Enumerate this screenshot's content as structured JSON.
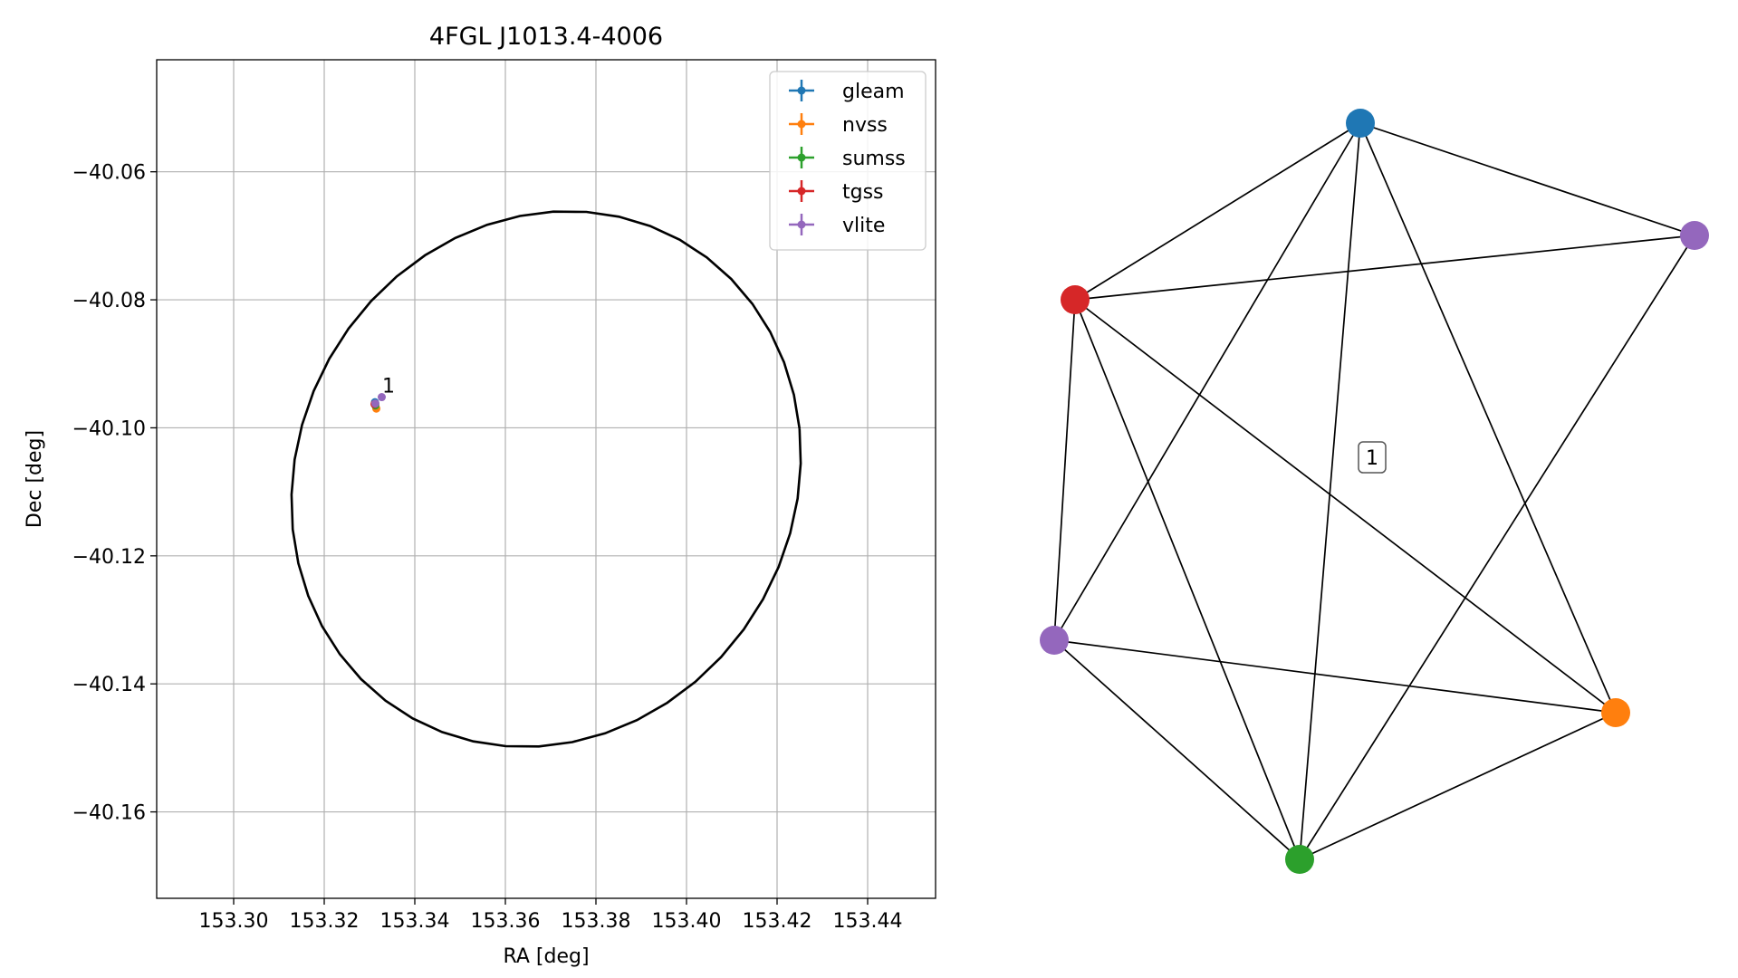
{
  "chart_data": [
    {
      "type": "scatter",
      "title": "4FGL J1013.4-4006",
      "xlabel": "RA [deg]",
      "ylabel": "Dec [deg]",
      "xlim": [
        153.283,
        153.455
      ],
      "ylim": [
        -40.1735,
        -40.0425
      ],
      "xticks": [
        153.3,
        153.32,
        153.34,
        153.36,
        153.38,
        153.4,
        153.42,
        153.44
      ],
      "xtick_labels": [
        "153.30",
        "153.32",
        "153.34",
        "153.36",
        "153.38",
        "153.40",
        "153.42",
        "153.44"
      ],
      "yticks": [
        -40.06,
        -40.08,
        -40.1,
        -40.12,
        -40.14,
        -40.16
      ],
      "ytick_labels": [
        "−40.06",
        "−40.08",
        "−40.10",
        "−40.12",
        "−40.14",
        "−40.16"
      ],
      "grid": true,
      "legend_position": "top-right",
      "series": [
        {
          "name": "gleam",
          "color": "#1f77b4",
          "points": [
            [
              153.3312,
              -40.096
            ]
          ]
        },
        {
          "name": "nvss",
          "color": "#ff7f0e",
          "points": [
            [
              153.3315,
              -40.097
            ]
          ]
        },
        {
          "name": "sumss",
          "color": "#2ca02c",
          "points": [
            [
              153.3313,
              -40.0965
            ]
          ]
        },
        {
          "name": "tgss",
          "color": "#d62728",
          "points": [
            [
              153.3311,
              -40.0963
            ]
          ]
        },
        {
          "name": "vlite",
          "color": "#9467bd",
          "points": [
            [
              153.3313,
              -40.0962
            ],
            [
              153.3327,
              -40.0952
            ]
          ]
        }
      ],
      "ellipse": {
        "center": [
          153.369,
          -40.108
        ],
        "rx": 0.0565,
        "ry": 0.0415,
        "angle_deg": 8,
        "color": "#000000"
      },
      "annotations": [
        {
          "text": "1",
          "x": 153.3328,
          "y": -40.0945
        }
      ]
    },
    {
      "type": "network",
      "cluster_label": "1",
      "nodes": [
        {
          "id": "gleam",
          "color": "#1f77b4"
        },
        {
          "id": "vlite_a",
          "color": "#9467bd"
        },
        {
          "id": "tgss",
          "color": "#d62728"
        },
        {
          "id": "vlite_b",
          "color": "#9467bd"
        },
        {
          "id": "nvss",
          "color": "#ff7f0e"
        },
        {
          "id": "sumss",
          "color": "#2ca02c"
        }
      ],
      "edges": [
        [
          "gleam",
          "tgss"
        ],
        [
          "gleam",
          "vlite_a"
        ],
        [
          "gleam",
          "vlite_b"
        ],
        [
          "gleam",
          "sumss"
        ],
        [
          "gleam",
          "nvss"
        ],
        [
          "tgss",
          "vlite_a"
        ],
        [
          "tgss",
          "vlite_b"
        ],
        [
          "tgss",
          "sumss"
        ],
        [
          "tgss",
          "nvss"
        ],
        [
          "vlite_a",
          "sumss"
        ],
        [
          "vlite_b",
          "nvss"
        ],
        [
          "vlite_b",
          "sumss"
        ],
        [
          "sumss",
          "nvss"
        ]
      ]
    }
  ]
}
